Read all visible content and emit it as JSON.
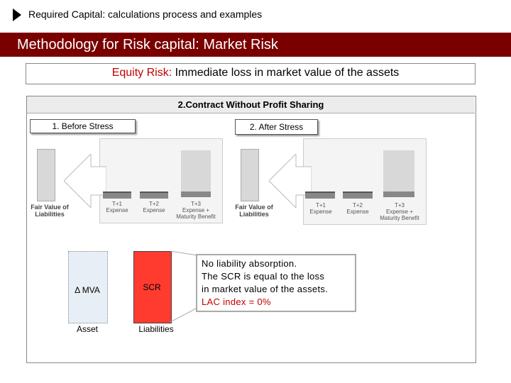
{
  "header": {
    "top_title": "Required Capital: calculations process and examples",
    "banner_title": "Methodology for Risk capital: Market Risk"
  },
  "subtitle": {
    "highlight": "Equity Risk:",
    "rest": " Immediate loss in market value of the assets"
  },
  "panel": {
    "title": "2.Contract Without Profit Sharing",
    "before_label": "1. Before Stress",
    "after_label": "2. After Stress",
    "left_diagram": {
      "fair_value_line1": "Fair Value of",
      "fair_value_line2": "Liabilities",
      "t1_line1": "T+1",
      "t1_line2": "Expense",
      "t2_line1": "T+2",
      "t2_line2": "Expense",
      "t3_line1": "T+3",
      "t3_line2": "Expense +",
      "t3_line3": "Maturity Benefit"
    },
    "right_diagram": {
      "fair_value_line1": "Fair Value of",
      "fair_value_line2": "Liabilities",
      "t1_line1": "T+1",
      "t1_line2": "Expense",
      "t2_line1": "T+2",
      "t2_line2": "Expense",
      "t3_line1": "T+3",
      "t3_line2": "Expense +",
      "t3_line3": "Maturity Benefit"
    },
    "mva_label": "Δ MVA",
    "asset_label": "Asset",
    "scr_label": "SCR",
    "liabilities_label": "Liabilities",
    "callout": {
      "line1": "No liability absorption.",
      "line2": "The SCR is equal to the loss",
      "line3": "in market value of the assets.",
      "line4": "LAC index = 0%"
    }
  },
  "colors": {
    "banner": "#7a0000",
    "accent_red": "#c00000",
    "scr_fill": "#ff3b30"
  }
}
